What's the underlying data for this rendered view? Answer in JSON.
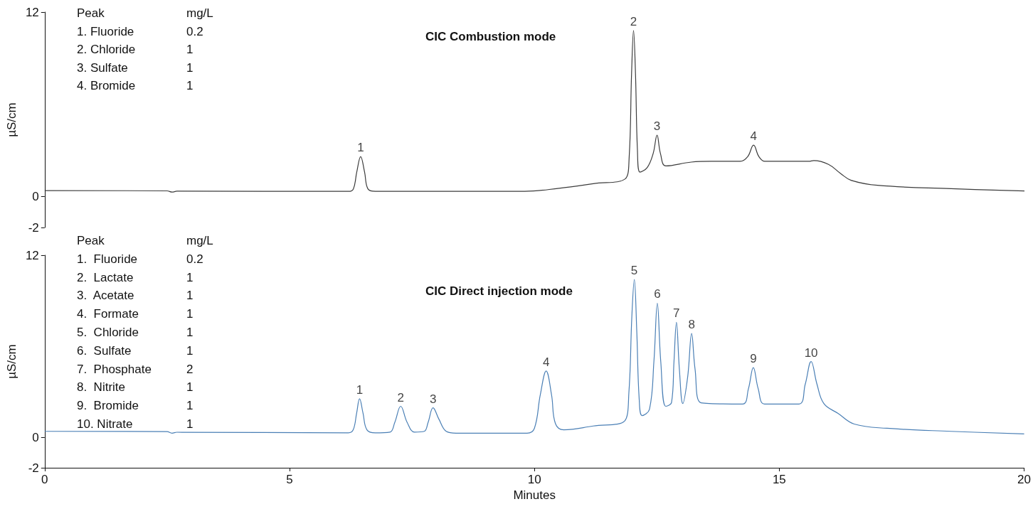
{
  "chart_data": [
    {
      "type": "line",
      "title": "CIC Combustion mode",
      "ylabel": "µS/cm",
      "xlim": [
        0,
        20
      ],
      "ylim": [
        -2,
        12
      ],
      "yticks": [
        -2,
        0,
        12
      ],
      "tick_labels": "y",
      "marker": "none",
      "line_style": "solid",
      "annotations": [
        "Peak",
        "mg/L",
        "1. Fluoride",
        "0.2",
        "2. Chloride",
        "1",
        "3. Sulfate",
        "1",
        "4. Bromide",
        "1",
        {
          "text": "1",
          "x": 6.45,
          "y": 2.6
        },
        {
          "text": "2",
          "x": 12.02,
          "y": 10.8
        },
        {
          "text": "3",
          "x": 12.5,
          "y": 4.0
        },
        {
          "text": "4",
          "x": 14.47,
          "y": 3.35
        }
      ],
      "series": [
        {
          "color": "#3c3c3c",
          "x": [
            0,
            2.5,
            2.6,
            2.7,
            6.2,
            6.3,
            6.37,
            6.45,
            6.53,
            6.6,
            6.75,
            9.8,
            10.5,
            11.2,
            11.85,
            11.93,
            11.98,
            12.02,
            12.06,
            12.1,
            12.15,
            12.3,
            12.42,
            12.5,
            12.57,
            12.68,
            13.2,
            13.6,
            14.2,
            14.35,
            14.47,
            14.58,
            14.7,
            15.6,
            15.7,
            16.0,
            16.25,
            16.46,
            17.0,
            18.5,
            20
          ],
          "values": [
            0.4,
            0.38,
            0.3,
            0.36,
            0.35,
            0.5,
            1.6,
            2.6,
            1.6,
            0.5,
            0.35,
            0.35,
            0.55,
            0.85,
            1.16,
            2.5,
            8.0,
            10.8,
            8.0,
            3.0,
            1.6,
            1.9,
            2.8,
            4.0,
            2.8,
            2.0,
            2.25,
            2.3,
            2.3,
            2.6,
            3.35,
            2.6,
            2.3,
            2.3,
            2.35,
            2.1,
            1.5,
            1.07,
            0.74,
            0.52,
            0.37
          ]
        }
      ]
    },
    {
      "type": "line",
      "title": "CIC Direct injection mode",
      "xlabel": "Minutes",
      "ylabel": "µS/cm",
      "xlim": [
        0,
        20
      ],
      "xticks": [
        0,
        5,
        10,
        15,
        20
      ],
      "ylim": [
        -2,
        12
      ],
      "yticks": [
        -2,
        0,
        12
      ],
      "marker": "none",
      "line_style": "solid",
      "annotations": [
        "Peak",
        "mg/L",
        "1.  Fluoride",
        "0.2",
        "2.  Lactate",
        "1",
        "3.  Acetate",
        "1",
        "4.  Formate",
        "1",
        "5.  Chloride",
        "1",
        "6.  Sulfate",
        "1",
        "7.  Phosphate",
        "2",
        "8.  Nitrite",
        "1",
        "9.  Bromide",
        "1",
        "10. Nitrate",
        "1",
        {
          "text": "1",
          "x": 6.43,
          "y": 2.55
        },
        {
          "text": "2",
          "x": 7.27,
          "y": 2.05
        },
        {
          "text": "3",
          "x": 7.93,
          "y": 1.95
        },
        {
          "text": "4",
          "x": 10.24,
          "y": 4.37
        },
        {
          "text": "5",
          "x": 12.04,
          "y": 10.4
        },
        {
          "text": "6",
          "x": 12.51,
          "y": 8.84
        },
        {
          "text": "7",
          "x": 12.9,
          "y": 7.58
        },
        {
          "text": "8",
          "x": 13.21,
          "y": 6.84
        },
        {
          "text": "9",
          "x": 14.47,
          "y": 4.6
        },
        {
          "text": "10",
          "x": 15.65,
          "y": 5.0
        }
      ],
      "series": [
        {
          "color": "#4a7fb5",
          "x": [
            0,
            2.5,
            2.6,
            2.7,
            6.2,
            6.3,
            6.37,
            6.43,
            6.5,
            6.58,
            6.75,
            7.05,
            7.15,
            7.27,
            7.4,
            7.55,
            7.75,
            7.83,
            7.93,
            8.05,
            8.2,
            8.4,
            9.85,
            10.0,
            10.12,
            10.24,
            10.35,
            10.43,
            10.6,
            11.2,
            11.84,
            11.93,
            11.99,
            12.04,
            12.09,
            12.14,
            12.2,
            12.35,
            12.44,
            12.51,
            12.58,
            12.68,
            12.8,
            12.85,
            12.9,
            12.96,
            13.03,
            13.13,
            13.21,
            13.28,
            13.4,
            14.25,
            14.37,
            14.47,
            14.57,
            14.7,
            15.4,
            15.53,
            15.65,
            15.77,
            15.91,
            16.2,
            16.53,
            17.2,
            18.5,
            20
          ],
          "values": [
            0.4,
            0.38,
            0.28,
            0.34,
            0.3,
            0.5,
            1.6,
            2.55,
            1.6,
            0.5,
            0.3,
            0.35,
            1.0,
            2.05,
            1.0,
            0.35,
            0.4,
            1.0,
            1.95,
            1.2,
            0.4,
            0.28,
            0.28,
            0.6,
            2.8,
            4.37,
            2.8,
            0.9,
            0.5,
            0.75,
            1.07,
            3.0,
            8.0,
            10.4,
            7.0,
            2.5,
            1.44,
            1.86,
            5.0,
            8.84,
            5.0,
            2.05,
            2.3,
            5.0,
            7.58,
            4.5,
            2.23,
            4.0,
            6.84,
            4.5,
            2.28,
            2.2,
            3.2,
            4.6,
            3.2,
            2.2,
            2.2,
            3.5,
            5.0,
            3.5,
            2.23,
            1.58,
            0.88,
            0.6,
            0.4,
            0.23
          ]
        }
      ]
    }
  ]
}
